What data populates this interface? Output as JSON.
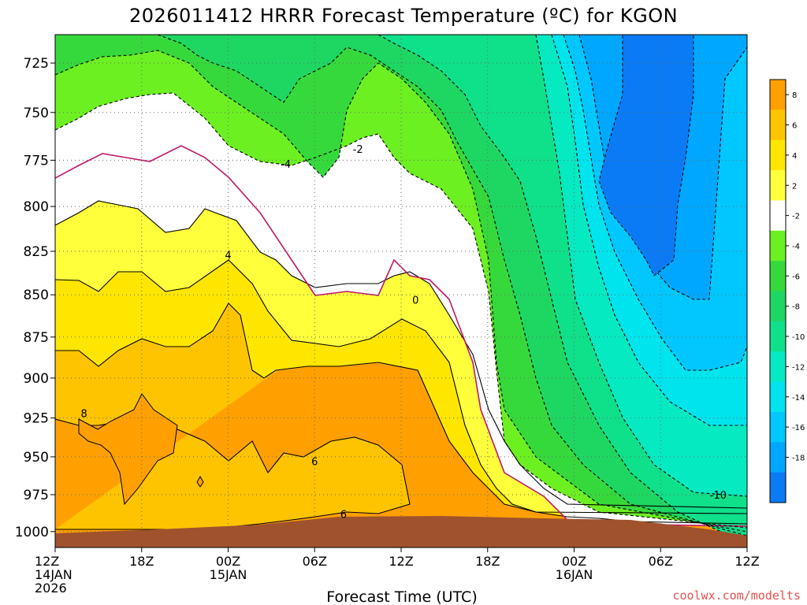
{
  "chart_data": {
    "type": "heatmap",
    "title": "2026011412 HRRR Forecast Temperature (ºC) for KGON",
    "xlabel": "Forecast Time (UTC)",
    "ylabel": "",
    "credit": "coolwx.com/modelts",
    "x_ticks": [
      {
        "hour": 0,
        "lines": [
          "12Z",
          "14JAN",
          "2026"
        ]
      },
      {
        "hour": 6,
        "lines": [
          "18Z"
        ]
      },
      {
        "hour": 12,
        "lines": [
          "00Z",
          "15JAN"
        ]
      },
      {
        "hour": 18,
        "lines": [
          "06Z"
        ]
      },
      {
        "hour": 24,
        "lines": [
          "12Z"
        ]
      },
      {
        "hour": 30,
        "lines": [
          "18Z"
        ]
      },
      {
        "hour": 36,
        "lines": [
          "00Z",
          "16JAN"
        ]
      },
      {
        "hour": 42,
        "lines": [
          "06Z"
        ]
      },
      {
        "hour": 48,
        "lines": [
          "12Z"
        ]
      }
    ],
    "y_ticks": [
      725,
      750,
      775,
      800,
      825,
      850,
      875,
      900,
      925,
      950,
      975,
      1000
    ],
    "xlim": [
      0,
      48
    ],
    "ylim": [
      1011,
      711
    ],
    "y_scale": "log-pressure",
    "grid": true,
    "levels": [
      -18,
      -16,
      -14,
      -12,
      -10,
      -8,
      -6,
      -4,
      -2,
      2,
      4,
      6,
      8
    ],
    "colorbar": [
      {
        "label": "8",
        "color": "#ffa000"
      },
      {
        "label": "6",
        "color": "#ffc400"
      },
      {
        "label": "4",
        "color": "#ffe600"
      },
      {
        "label": "2",
        "color": "#ffff3c"
      },
      {
        "label": "-2",
        "color": "#ffffff"
      },
      {
        "label": "-4",
        "color": "#6cf022"
      },
      {
        "label": "-6",
        "color": "#36d93c"
      },
      {
        "label": "-8",
        "color": "#1ed762"
      },
      {
        "label": "-10",
        "color": "#0fe08a"
      },
      {
        "label": "-12",
        "color": "#06eac2"
      },
      {
        "label": "-14",
        "color": "#00e4ee"
      },
      {
        "label": "-16",
        "color": "#00c8ff"
      },
      {
        "label": "-18",
        "color": "#00a7ff"
      },
      {
        "label": "",
        "color": "#0a7bf5"
      }
    ],
    "contour_labels": [
      {
        "text": "8",
        "hour": 2.0,
        "p": 922
      },
      {
        "text": "4",
        "hour": 12.0,
        "p": 827
      },
      {
        "text": "-4",
        "hour": 16.0,
        "p": 777
      },
      {
        "text": "-2",
        "hour": 21.0,
        "p": 769
      },
      {
        "text": "0",
        "hour": 25.0,
        "p": 853
      },
      {
        "text": "6",
        "hour": 18.0,
        "p": 953
      },
      {
        "text": "6",
        "hour": 20.0,
        "p": 988
      },
      {
        "text": "-10",
        "hour": 46.0,
        "p": 975
      }
    ],
    "terrain_color": "#a0522d"
  }
}
